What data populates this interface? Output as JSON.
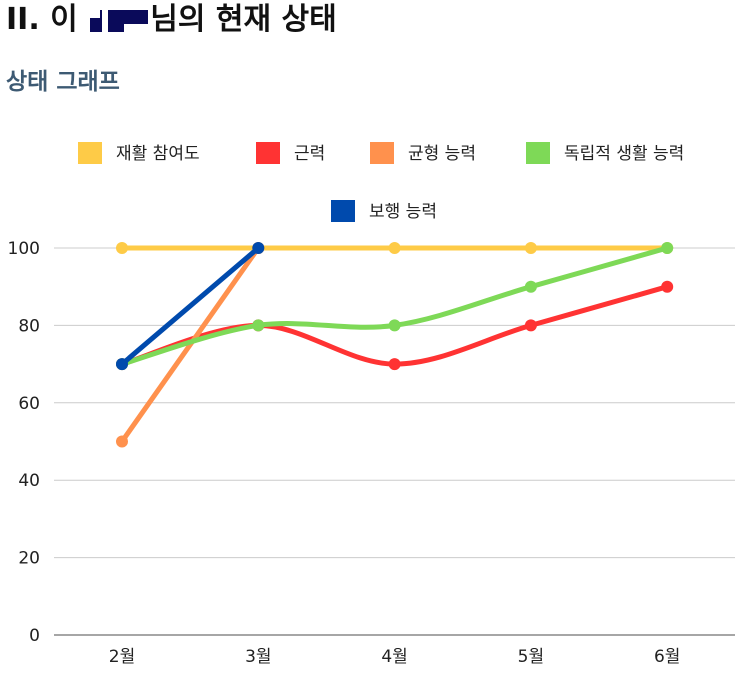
{
  "header": {
    "title_prefix": "II. 이",
    "title_suffix": "님의 현재 상태",
    "section_title": "상태 그래프"
  },
  "chart_data": {
    "type": "line",
    "categories": [
      "2월",
      "3월",
      "4월",
      "5월",
      "6월"
    ],
    "ylim": [
      0,
      100
    ],
    "yticks": [
      0,
      20,
      40,
      60,
      80,
      100
    ],
    "grid": true,
    "legend_position": "top",
    "series": [
      {
        "name": "재활 참여도",
        "color": "#FECB47",
        "values": [
          100,
          100,
          100,
          100,
          100
        ],
        "smooth": false
      },
      {
        "name": "근력",
        "color": "#FF3333",
        "values": [
          70,
          80,
          70,
          80,
          90
        ],
        "smooth": true
      },
      {
        "name": "균형 능력",
        "color": "#FF914D",
        "values": [
          50,
          100,
          null,
          null,
          null
        ],
        "smooth": false
      },
      {
        "name": "독립적 생활 능력",
        "color": "#7ED957",
        "values": [
          70,
          80,
          80,
          90,
          100
        ],
        "smooth": true
      },
      {
        "name": "보행 능력",
        "color": "#004AAD",
        "values": [
          70,
          100,
          null,
          null,
          null
        ],
        "smooth": false
      }
    ]
  }
}
